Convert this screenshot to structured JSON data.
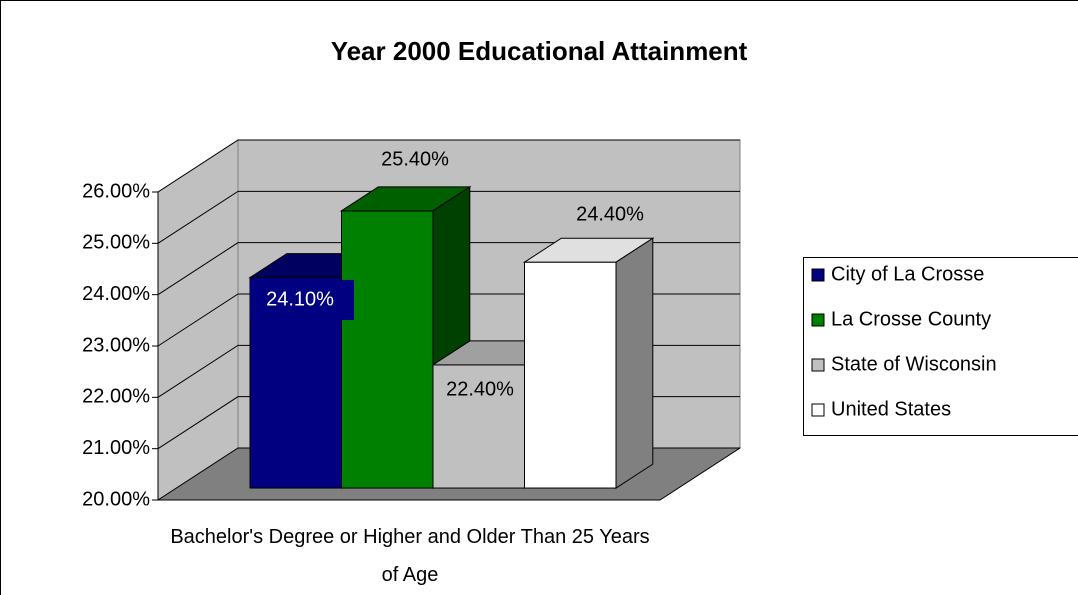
{
  "chart_data": {
    "type": "bar3d",
    "title": "Year 2000 Educational Attainment",
    "categories": [
      "Bachelor's Degree or Higher and Older Than 25 Years of Age"
    ],
    "series": [
      {
        "name": "City of La Crosse",
        "color": "#000080",
        "values": [
          24.1
        ],
        "value_labels": [
          "24.10%"
        ]
      },
      {
        "name": "La Crosse County",
        "color": "#008000",
        "values": [
          25.4
        ],
        "value_labels": [
          "25.40%"
        ]
      },
      {
        "name": "State of Wisconsin",
        "color": "#c0c0c0",
        "values": [
          22.4
        ],
        "value_labels": [
          "22.40%"
        ]
      },
      {
        "name": "United States",
        "color": "#ffffff",
        "values": [
          24.4
        ],
        "value_labels": [
          "24.40%"
        ]
      }
    ],
    "ylim": [
      20,
      26
    ],
    "yticks": [
      {
        "value": 20,
        "label": "20.00%"
      },
      {
        "value": 21,
        "label": "21.00%"
      },
      {
        "value": 22,
        "label": "22.00%"
      },
      {
        "value": 23,
        "label": "23.00%"
      },
      {
        "value": 24,
        "label": "24.00%"
      },
      {
        "value": 25,
        "label": "25.00%"
      },
      {
        "value": 26,
        "label": "26.00%"
      }
    ],
    "grid": true,
    "legend": "right"
  }
}
